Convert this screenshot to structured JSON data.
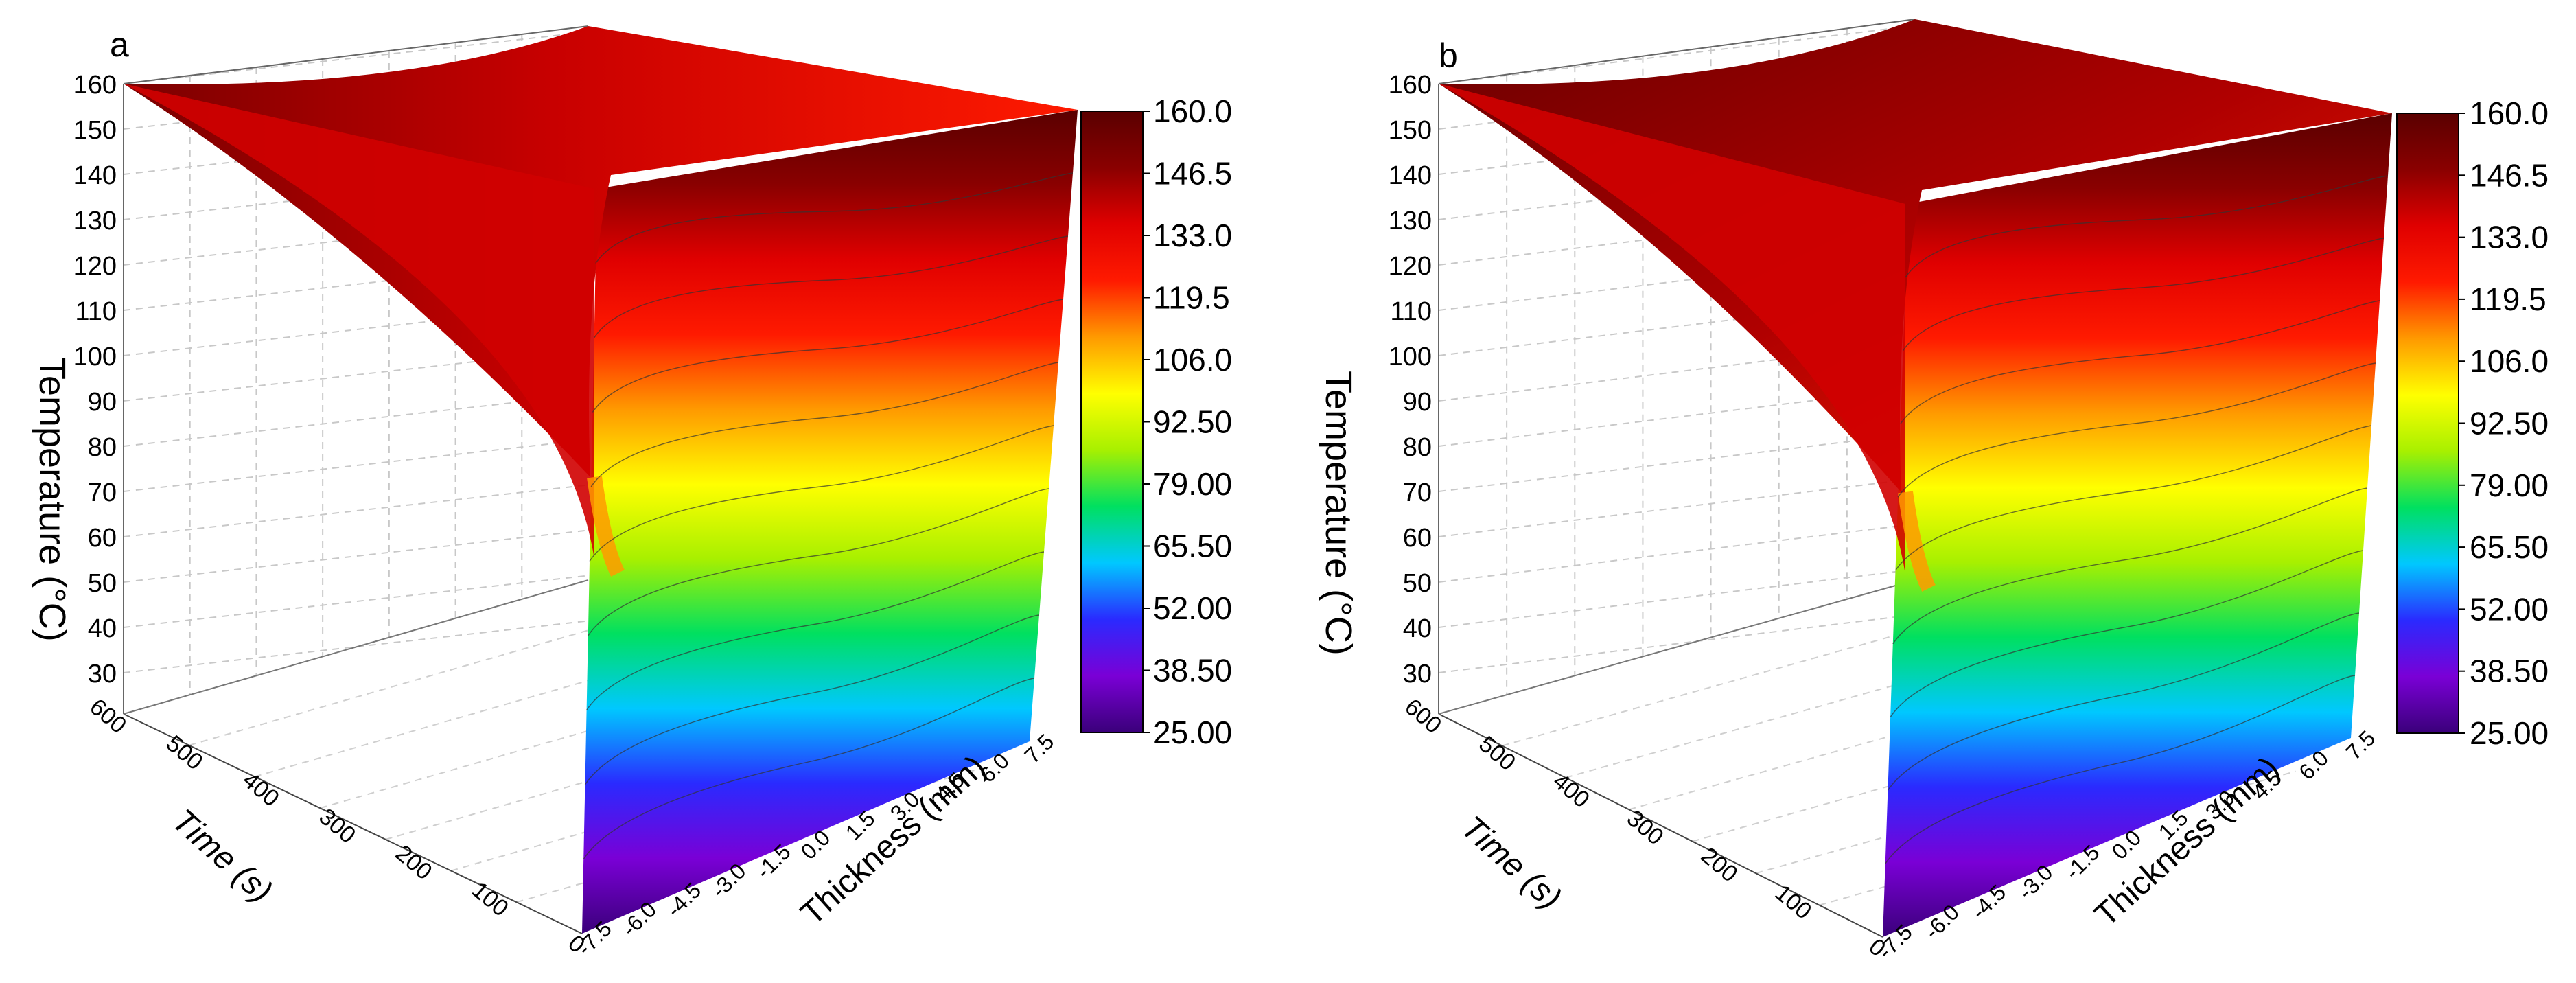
{
  "chart_data": [
    {
      "type": "surface3d",
      "panel_label": "a",
      "zlabel": "Temperature (°C)",
      "zlabel_main": "Temperature (",
      "zlabel_unit": "°C",
      "zlabel_close": ")",
      "ylabel": "Time (s)",
      "xlabel": "Thickness (mm)",
      "z_ticks": [
        "160",
        "150",
        "140",
        "130",
        "120",
        "110",
        "100",
        "90",
        "80",
        "70",
        "60",
        "50",
        "40",
        "30"
      ],
      "time_ticks": [
        "600",
        "500",
        "400",
        "300",
        "200",
        "100",
        "0"
      ],
      "thickness_ticks": [
        "7.5",
        "6.0",
        "4.5",
        "3.0",
        "1.5",
        "0.0",
        "-1.5",
        "-3.0",
        "-4.5",
        "-6.0",
        "-7.5"
      ],
      "zlim": [
        25,
        160
      ],
      "time_range": [
        0,
        600
      ],
      "thickness_range": [
        -7.5,
        7.5
      ],
      "colorbar_ticks": [
        "160.0",
        "146.5",
        "133.0",
        "119.5",
        "106.0",
        "92.50",
        "79.00",
        "65.50",
        "52.00",
        "38.50",
        "25.00"
      ],
      "colorbar_range": [
        25,
        160
      ],
      "colormap": [
        "#3a007a",
        "#7a00d6",
        "#2a2aff",
        "#00c8ff",
        "#00e060",
        "#a8f000",
        "#ffff00",
        "#ff9a00",
        "#ff1a00",
        "#e00000",
        "#8a0000",
        "#5a0000"
      ],
      "contour_levels": [
        38.5,
        52.0,
        65.5,
        79.0,
        92.5,
        106.0,
        119.5,
        133.0,
        146.5
      ],
      "initial_temperature": 25,
      "surface_temperature": 160
    },
    {
      "type": "surface3d",
      "panel_label": "b",
      "zlabel": "Temperature (°C)",
      "zlabel_main": "Temperature (",
      "zlabel_unit": "°C",
      "zlabel_close": ")",
      "ylabel": "Time (s)",
      "xlabel": "Thickness (mm)",
      "z_ticks": [
        "160",
        "150",
        "140",
        "130",
        "120",
        "110",
        "100",
        "90",
        "80",
        "70",
        "60",
        "50",
        "40",
        "30"
      ],
      "time_ticks": [
        "600",
        "500",
        "400",
        "300",
        "200",
        "100",
        "0"
      ],
      "thickness_ticks": [
        "7.5",
        "6.0",
        "4.5",
        "3.0",
        "1.5",
        "0.0",
        "-1.5",
        "-3.0",
        "-4.5",
        "-6.0",
        "-7.5"
      ],
      "zlim": [
        25,
        160
      ],
      "time_range": [
        0,
        600
      ],
      "thickness_range": [
        -7.5,
        7.5
      ],
      "colorbar_ticks": [
        "160.0",
        "146.5",
        "133.0",
        "119.5",
        "106.0",
        "92.50",
        "79.00",
        "65.50",
        "52.00",
        "38.50",
        "25.00"
      ],
      "colorbar_range": [
        25,
        160
      ],
      "colormap": [
        "#3a007a",
        "#7a00d6",
        "#2a2aff",
        "#00c8ff",
        "#00e060",
        "#a8f000",
        "#ffff00",
        "#ff9a00",
        "#ff1a00",
        "#e00000",
        "#8a0000",
        "#5a0000"
      ],
      "contour_levels": [
        38.5,
        52.0,
        65.5,
        79.0,
        92.5,
        106.0,
        119.5,
        133.0,
        146.5
      ],
      "initial_temperature": 25,
      "surface_temperature": 160
    }
  ]
}
